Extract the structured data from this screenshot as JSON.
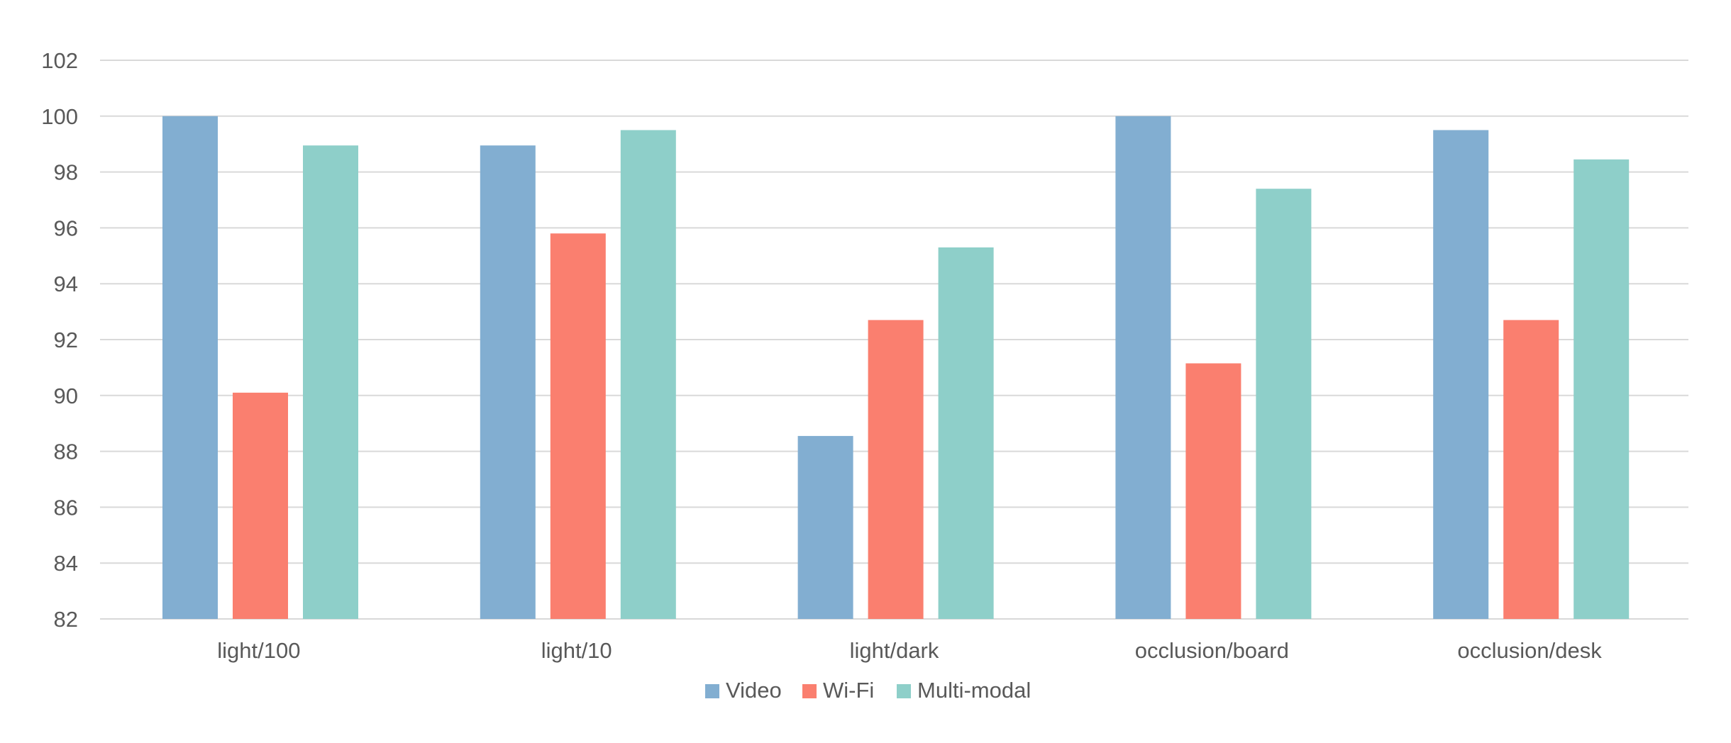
{
  "chart_data": {
    "type": "bar",
    "categories": [
      "light/100",
      "light/10",
      "light/dark",
      "occlusion/board",
      "occlusion/desk"
    ],
    "series": [
      {
        "name": "Video",
        "color": "#82aed1",
        "values": [
          100.0,
          98.95,
          88.55,
          100.0,
          99.5
        ]
      },
      {
        "name": "Wi-Fi",
        "color": "#fa7f6f",
        "values": [
          90.1,
          95.8,
          92.7,
          91.15,
          92.7
        ]
      },
      {
        "name": "Multi-modal",
        "color": "#8ecfc9",
        "values": [
          98.95,
          99.5,
          95.3,
          97.4,
          98.45
        ]
      }
    ],
    "y_ticks": [
      "82",
      "84",
      "86",
      "88",
      "90",
      "92",
      "94",
      "96",
      "98",
      "100",
      "102"
    ],
    "ylim": [
      82,
      102
    ],
    "grid": true,
    "legend_position": "bottom",
    "title": "",
    "xlabel": "",
    "ylabel": ""
  }
}
